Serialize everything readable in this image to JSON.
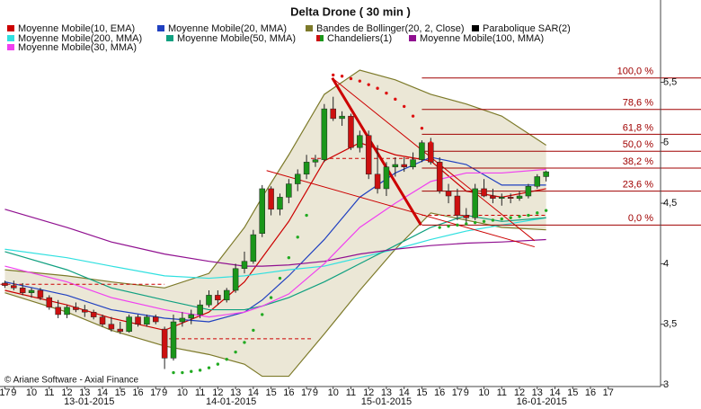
{
  "chart_data": {
    "type": "candlestick",
    "title": "Delta Drone  ( 30 min )",
    "credit": "© Ariane Software - Axial Finance",
    "ylim": [
      3,
      6.15
    ],
    "yticks": [
      3,
      {
        "value": 3.5,
        "label": "3,5"
      },
      4,
      {
        "value": 4.5,
        "label": "4,5"
      },
      5,
      {
        "value": 5.5,
        "label": "5,5"
      }
    ],
    "xlim": [
      -1.55,
      72.9
    ],
    "xticks": [
      {
        "value": -1,
        "label": "17"
      },
      {
        "value": 0,
        "label": "9"
      },
      {
        "value": 2,
        "label": "10"
      },
      {
        "value": 4,
        "label": "11"
      },
      {
        "value": 6,
        "label": "12"
      },
      {
        "value": 8,
        "label": "13"
      },
      {
        "value": 10,
        "label": "14"
      },
      {
        "value": 12,
        "label": "15"
      },
      {
        "value": 14,
        "label": "16"
      },
      {
        "value": 16,
        "label": "17"
      },
      {
        "value": 17,
        "label": "9"
      },
      {
        "value": 19,
        "label": "10"
      },
      {
        "value": 21,
        "label": "11"
      },
      {
        "value": 23,
        "label": "12"
      },
      {
        "value": 25,
        "label": "13"
      },
      {
        "value": 27,
        "label": "14"
      },
      {
        "value": 29,
        "label": "15"
      },
      {
        "value": 31,
        "label": "16"
      },
      {
        "value": 33,
        "label": "17"
      },
      {
        "value": 34,
        "label": "9"
      },
      {
        "value": 36,
        "label": "10"
      },
      {
        "value": 38,
        "label": "11"
      },
      {
        "value": 40,
        "label": "12"
      },
      {
        "value": 42,
        "label": "13"
      },
      {
        "value": 44,
        "label": "14"
      },
      {
        "value": 46,
        "label": "15"
      },
      {
        "value": 48,
        "label": "16"
      },
      {
        "value": 50,
        "label": "17"
      },
      {
        "value": 51,
        "label": "9"
      },
      {
        "value": 53,
        "label": "10"
      },
      {
        "value": 55,
        "label": "11"
      },
      {
        "value": 57,
        "label": "12"
      },
      {
        "value": 59,
        "label": "13"
      },
      {
        "value": 61,
        "label": "14"
      },
      {
        "value": 63,
        "label": "15"
      },
      {
        "value": 65,
        "label": "16"
      },
      {
        "value": 67,
        "label": "17"
      }
    ],
    "day_labels": [
      {
        "value": 8.5,
        "label": "13-01-2015"
      },
      {
        "value": 24.5,
        "label": "14-01-2015"
      },
      {
        "value": 42,
        "label": "15-01-2015"
      },
      {
        "value": 59.5,
        "label": "16-01-2015"
      }
    ],
    "series": [
      {
        "name": "Moyenne Mobile(10, EMA)",
        "type": "line",
        "color": "#cc0000",
        "x": [
          -1,
          6,
          11,
          17,
          22,
          26,
          28,
          31,
          35,
          39,
          43,
          47,
          51,
          55,
          60
        ],
        "values": [
          3.78,
          3.66,
          3.55,
          3.45,
          3.6,
          3.85,
          4.05,
          4.35,
          4.85,
          5.0,
          4.9,
          4.85,
          4.6,
          4.55,
          4.62
        ]
      },
      {
        "name": "Moyenne Mobile(20, MMA)",
        "type": "line",
        "color": "#2040c0",
        "x": [
          -1,
          6,
          11,
          17,
          22,
          26,
          28,
          31,
          35,
          39,
          43,
          47,
          51,
          55,
          60
        ],
        "values": [
          3.85,
          3.74,
          3.62,
          3.55,
          3.52,
          3.6,
          3.7,
          3.9,
          4.2,
          4.55,
          4.75,
          4.88,
          4.82,
          4.65,
          4.65
        ]
      },
      {
        "name": "Bandes de Bollinger(20, 2, Close)",
        "type": "band",
        "color": "#7d7a2a",
        "fill": "#ebe7d6",
        "x": [
          -1,
          6,
          11,
          17,
          22,
          26,
          28,
          31,
          35,
          39,
          43,
          47,
          51,
          55,
          60
        ],
        "upper": [
          3.95,
          3.9,
          3.85,
          3.8,
          3.92,
          4.3,
          4.55,
          4.9,
          5.4,
          5.6,
          5.52,
          5.4,
          5.32,
          5.22,
          4.98
        ],
        "lower": [
          3.76,
          3.6,
          3.45,
          3.32,
          3.25,
          3.17,
          3.07,
          3.07,
          3.42,
          3.78,
          4.12,
          4.42,
          4.36,
          4.3,
          4.28
        ]
      },
      {
        "name": "Parabolique SAR(2)",
        "type": "sar",
        "color": "#000000",
        "up_color": "#22aa22",
        "down_color": "#dd1111",
        "x": [
          18,
          19,
          20,
          21,
          22,
          23,
          24,
          25,
          26,
          27,
          28,
          29,
          30,
          31,
          32,
          33,
          36,
          37,
          38,
          39,
          40,
          41,
          42,
          43,
          44,
          45,
          46,
          47,
          48,
          49,
          50,
          51,
          52,
          53,
          54,
          55,
          56,
          57,
          58,
          59,
          60
        ],
        "values": [
          3.1,
          3.1,
          3.11,
          3.12,
          3.14,
          3.17,
          3.21,
          3.27,
          3.35,
          3.45,
          3.58,
          3.72,
          3.88,
          4.05,
          4.22,
          4.4,
          5.56,
          5.55,
          5.53,
          5.51,
          5.48,
          5.45,
          5.41,
          5.36,
          5.3,
          5.22,
          5.12,
          5.0,
          4.3,
          4.31,
          4.32,
          4.33,
          4.34,
          4.35,
          4.36,
          4.37,
          4.38,
          4.39,
          4.4,
          4.42,
          4.44
        ]
      },
      {
        "name": "Moyenne Mobile(200, MMA)",
        "type": "line",
        "color": "#30e0e0",
        "x": [
          -1,
          6,
          11,
          17,
          22,
          26,
          28,
          31,
          35,
          39,
          43,
          47,
          51,
          55,
          60
        ],
        "values": [
          4.12,
          4.05,
          3.98,
          3.9,
          3.88,
          3.9,
          3.92,
          3.95,
          3.98,
          4.05,
          4.12,
          4.2,
          4.27,
          4.32,
          4.38
        ]
      },
      {
        "name": "Moyenne Mobile(50, MMA)",
        "type": "line",
        "color": "#10a080",
        "x": [
          -1,
          6,
          11,
          17,
          22,
          26,
          28,
          31,
          35,
          39,
          43,
          47,
          51,
          55,
          60
        ],
        "values": [
          4.1,
          3.95,
          3.8,
          3.7,
          3.62,
          3.62,
          3.65,
          3.72,
          3.85,
          4.0,
          4.15,
          4.3,
          4.4,
          4.35,
          4.38
        ]
      },
      {
        "name": "Chandeliers(1)",
        "type": "candlestick",
        "color": "#cc1010",
        "up_color": "#1a961a",
        "down_color": "#cc1010",
        "x": [
          -1,
          0,
          1,
          2,
          3,
          4,
          5,
          6,
          7,
          8,
          9,
          10,
          11,
          12,
          13,
          14,
          15,
          16,
          17,
          18,
          19,
          20,
          21,
          22,
          23,
          24,
          25,
          26,
          27,
          28,
          29,
          30,
          31,
          32,
          33,
          34,
          35,
          36,
          37,
          38,
          39,
          40,
          41,
          42,
          43,
          44,
          45,
          46,
          47,
          48,
          49,
          50,
          51,
          52,
          53,
          54,
          55,
          56,
          57,
          58,
          59,
          60
        ],
        "open": [
          3.84,
          3.82,
          3.8,
          3.76,
          3.78,
          3.72,
          3.64,
          3.58,
          3.64,
          3.62,
          3.6,
          3.56,
          3.5,
          3.46,
          3.44,
          3.56,
          3.5,
          3.56,
          3.46,
          3.22,
          3.52,
          3.55,
          3.58,
          3.66,
          3.74,
          3.7,
          3.78,
          3.96,
          4.02,
          4.25,
          4.62,
          4.45,
          4.55,
          4.66,
          4.74,
          4.84,
          4.86,
          5.28,
          5.2,
          5.22,
          4.96,
          5.06,
          4.74,
          4.62,
          4.8,
          4.82,
          4.8,
          4.86,
          5.0,
          4.84,
          4.6,
          4.56,
          4.4,
          4.38,
          4.62,
          4.56,
          4.54,
          4.55,
          4.54,
          4.56,
          4.64,
          4.72
        ],
        "high": [
          3.86,
          3.86,
          3.84,
          3.8,
          3.8,
          3.74,
          3.7,
          3.66,
          3.68,
          3.66,
          3.62,
          3.58,
          3.56,
          3.52,
          3.58,
          3.58,
          3.58,
          3.58,
          3.48,
          3.58,
          3.6,
          3.62,
          3.7,
          3.78,
          3.78,
          3.8,
          4.0,
          4.1,
          4.28,
          4.65,
          4.64,
          4.58,
          4.7,
          4.78,
          4.9,
          4.9,
          5.32,
          5.38,
          5.26,
          5.24,
          5.1,
          5.1,
          4.98,
          4.84,
          4.88,
          4.88,
          4.92,
          5.02,
          5.04,
          4.88,
          4.66,
          4.62,
          4.46,
          4.66,
          4.7,
          4.62,
          4.58,
          4.58,
          4.6,
          4.66,
          4.74,
          4.77
        ],
        "low": [
          3.8,
          3.78,
          3.74,
          3.72,
          3.7,
          3.62,
          3.55,
          3.55,
          3.6,
          3.56,
          3.54,
          3.48,
          3.44,
          3.42,
          3.43,
          3.48,
          3.48,
          3.5,
          3.13,
          3.2,
          3.48,
          3.5,
          3.55,
          3.64,
          3.66,
          3.68,
          3.76,
          3.92,
          4.0,
          4.22,
          4.4,
          4.4,
          4.5,
          4.6,
          4.7,
          4.8,
          4.84,
          5.18,
          5.14,
          4.94,
          4.92,
          4.7,
          4.58,
          4.56,
          4.72,
          4.76,
          4.78,
          4.84,
          4.82,
          4.58,
          4.5,
          4.36,
          4.32,
          4.36,
          4.55,
          4.5,
          4.48,
          4.5,
          4.52,
          4.54,
          4.62,
          4.68
        ],
        "close": [
          3.82,
          3.8,
          3.76,
          3.78,
          3.72,
          3.64,
          3.58,
          3.64,
          3.62,
          3.6,
          3.56,
          3.5,
          3.46,
          3.44,
          3.56,
          3.5,
          3.56,
          3.52,
          3.22,
          3.52,
          3.55,
          3.58,
          3.66,
          3.74,
          3.7,
          3.78,
          3.96,
          4.02,
          4.24,
          4.62,
          4.45,
          4.55,
          4.66,
          4.74,
          4.84,
          4.86,
          5.28,
          5.2,
          5.22,
          4.96,
          5.06,
          4.74,
          4.62,
          4.8,
          4.82,
          4.8,
          4.86,
          5.0,
          4.84,
          4.6,
          4.56,
          4.4,
          4.38,
          4.62,
          4.56,
          4.54,
          4.55,
          4.54,
          4.56,
          4.64,
          4.72,
          4.76
        ]
      },
      {
        "name": "Moyenne Mobile(100, MMA)",
        "type": "line",
        "color": "#901090",
        "x": [
          -1,
          6,
          11,
          17,
          22,
          26,
          28,
          31,
          35,
          39,
          43,
          47,
          51,
          55,
          60
        ],
        "values": [
          4.45,
          4.3,
          4.18,
          4.08,
          4.02,
          3.98,
          3.98,
          3.99,
          4.02,
          4.08,
          4.12,
          4.15,
          4.17,
          4.18,
          4.2
        ]
      },
      {
        "name": "Moyenne Mobile(30, MMA)",
        "type": "line",
        "color": "#f040f0",
        "x": [
          -1,
          6,
          11,
          17,
          22,
          26,
          28,
          31,
          35,
          39,
          43,
          47,
          51,
          55,
          60
        ],
        "values": [
          3.98,
          3.85,
          3.72,
          3.62,
          3.56,
          3.6,
          3.65,
          3.75,
          4.0,
          4.3,
          4.5,
          4.68,
          4.75,
          4.75,
          4.78
        ]
      }
    ],
    "fibonacci": {
      "color": "#a00000",
      "start": 46,
      "levels": [
        5.535,
        5.275,
        5.07,
        4.93,
        4.79,
        4.6,
        4.32
      ],
      "level_names": [
        "100,0 %",
        "78,6 %",
        "61,8 %",
        "50,0 %",
        "38,2 %",
        "23,6 %",
        "0,0 %"
      ]
    },
    "trend_lines": {
      "color": "#cc0000",
      "lines": [
        {
          "x": [
            35.9,
            45.9
          ],
          "values": [
            5.535,
            4.32
          ]
        },
        {
          "x": [
            35.9,
            58.7
          ],
          "values": [
            5.535,
            4.19
          ]
        },
        {
          "x": [
            28.5,
            58.7
          ],
          "values": [
            4.77,
            4.14
          ]
        }
      ]
    },
    "dashed_levels": {
      "color": "#cc0000",
      "lines": [
        {
          "x": [
            -1.5,
            17
          ],
          "values": [
            3.83,
            3.83
          ]
        },
        {
          "x": [
            17.5,
            33.5
          ],
          "values": [
            3.38,
            3.38
          ]
        },
        {
          "x": [
            33.5,
            46
          ],
          "values": [
            4.87,
            4.87
          ]
        },
        {
          "x": [
            46,
            60
          ],
          "values": [
            4.4,
            4.4
          ]
        }
      ]
    }
  }
}
